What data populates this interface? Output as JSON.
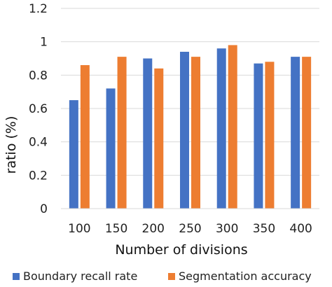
{
  "chart_data": {
    "type": "bar",
    "title": "",
    "xlabel": "Number of divisions",
    "ylabel": "ratio (%)",
    "categories": [
      "100",
      "150",
      "200",
      "250",
      "300",
      "350",
      "400"
    ],
    "series": [
      {
        "name": "Boundary recall rate",
        "color": "#4472c4",
        "values": [
          0.65,
          0.72,
          0.9,
          0.94,
          0.96,
          0.87,
          0.91
        ]
      },
      {
        "name": "Segmentation accuracy",
        "color": "#ed7d31",
        "values": [
          0.86,
          0.91,
          0.84,
          0.91,
          0.98,
          0.88,
          0.91
        ]
      }
    ],
    "ylim": [
      0,
      1.2
    ],
    "yticks": [
      "0",
      "0.2",
      "0.4",
      "0.6",
      "0.8",
      "1",
      "1.2"
    ],
    "grid": true,
    "legend": "bottom"
  }
}
